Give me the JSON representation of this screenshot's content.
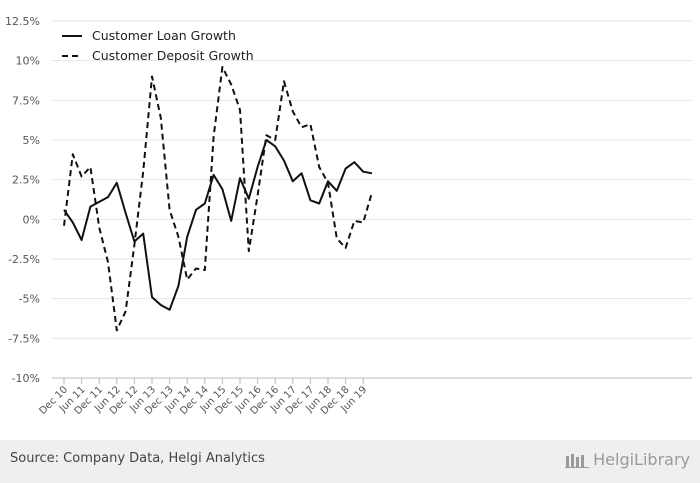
{
  "chart_data": {
    "type": "line",
    "title": "",
    "xlabel": "",
    "ylabel": "",
    "ylim": [
      -10,
      12.5
    ],
    "y_ticks": [
      "12.5%",
      "10%",
      "7.5%",
      "5%",
      "2.5%",
      "0%",
      "-2.5%",
      "-5%",
      "-7.5%",
      "-10%"
    ],
    "x_tick_labels": [
      "Dec 10",
      "Jun 11",
      "Dec 11",
      "Jun 12",
      "Dec 12",
      "Jun 13",
      "Dec 13",
      "Jun 14",
      "Dec 14",
      "Jun 15",
      "Dec 15",
      "Jun 16",
      "Dec 16",
      "Jun 17",
      "Dec 17",
      "Jun 18",
      "Dec 18",
      "Jun 19"
    ],
    "x": [
      "Dec 10",
      "Mar 11",
      "Jun 11",
      "Sep 11",
      "Dec 11",
      "Mar 12",
      "Jun 12",
      "Sep 12",
      "Dec 12",
      "Mar 13",
      "Jun 13",
      "Sep 13",
      "Dec 13",
      "Mar 14",
      "Jun 14",
      "Sep 14",
      "Dec 14",
      "Mar 15",
      "Jun 15",
      "Sep 15",
      "Dec 15",
      "Mar 16",
      "Jun 16",
      "Sep 16",
      "Dec 16",
      "Mar 17",
      "Jun 17",
      "Sep 17",
      "Dec 17",
      "Mar 18",
      "Jun 18",
      "Sep 18",
      "Dec 18",
      "Mar 19",
      "Jun 19",
      "Sep 19"
    ],
    "grid": true,
    "legend_position": "top-left",
    "series": [
      {
        "name": "Customer Loan Growth",
        "style": "solid",
        "color": "#111111",
        "values": [
          0.6,
          -0.2,
          -1.3,
          0.8,
          1.1,
          1.4,
          2.3,
          0.4,
          -1.4,
          -0.9,
          -4.9,
          -5.4,
          -5.7,
          -4.2,
          -1.1,
          0.6,
          1.0,
          2.8,
          1.9,
          -0.1,
          2.6,
          1.3,
          3.3,
          5.0,
          4.6,
          3.7,
          2.4,
          2.9,
          1.2,
          1.0,
          2.4,
          1.8,
          3.2,
          3.6,
          3.0,
          2.9
        ]
      },
      {
        "name": "Customer Deposit Growth",
        "style": "dashed",
        "color": "#111111",
        "values": [
          -0.4,
          4.1,
          2.7,
          3.3,
          -0.5,
          -2.7,
          -7.0,
          -5.8,
          -1.6,
          3.0,
          9.0,
          6.4,
          0.6,
          -1.1,
          -3.8,
          -3.1,
          -3.2,
          5.2,
          9.6,
          8.5,
          6.9,
          -2.0,
          1.5,
          5.3,
          5.0,
          8.7,
          6.8,
          5.8,
          6.0,
          3.3,
          2.3,
          -1.2,
          -1.8,
          -0.1,
          -0.2,
          1.7
        ]
      }
    ]
  },
  "footer": {
    "source": "Source: Company Data, Helgi Analytics",
    "brand": "HelgiLibrary"
  }
}
